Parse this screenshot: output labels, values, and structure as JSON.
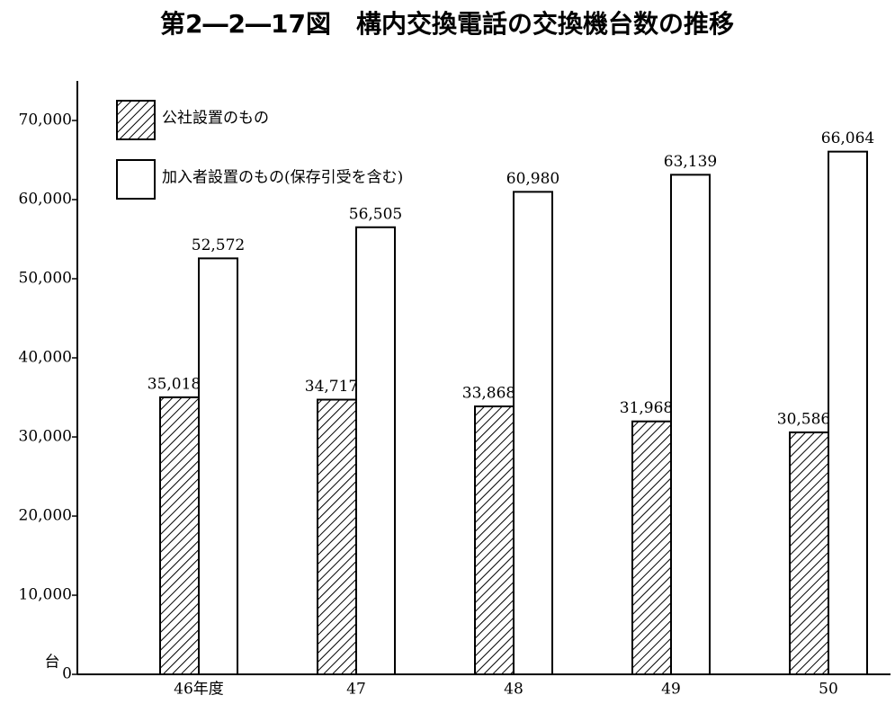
{
  "chart_data": {
    "type": "bar",
    "title": "第2―2―17図　構内交換電話の交換機台数の推移",
    "y_unit_label": "台",
    "categories": [
      "46年度",
      "47",
      "48",
      "49",
      "50"
    ],
    "series": [
      {
        "name": "公社設置のもの",
        "color": "#000000",
        "hatch": true,
        "values": [
          35018,
          34717,
          33868,
          31968,
          30586
        ],
        "value_labels": [
          "35,018",
          "34,717",
          "33,868",
          "31,968",
          "30,586"
        ]
      },
      {
        "name": "加入者設置のもの(保存引受を含む)",
        "color": "#ffffff",
        "hatch": false,
        "values": [
          52572,
          56505,
          60980,
          63139,
          66064
        ],
        "value_labels": [
          "52,572",
          "56,505",
          "60,980",
          "63,139",
          "66,064"
        ]
      }
    ],
    "ylim": [
      0,
      75000
    ],
    "yticks": [
      0,
      {
        "value": 10000,
        "label": "10,000"
      },
      {
        "value": 20000,
        "label": "20,000"
      },
      {
        "value": 30000,
        "label": "30,000"
      },
      {
        "value": 40000,
        "label": "40,000"
      },
      {
        "value": 50000,
        "label": "50,000"
      },
      {
        "value": 60000,
        "label": "60,000"
      },
      {
        "value": 70000,
        "label": "70,000"
      }
    ],
    "grid": false
  }
}
